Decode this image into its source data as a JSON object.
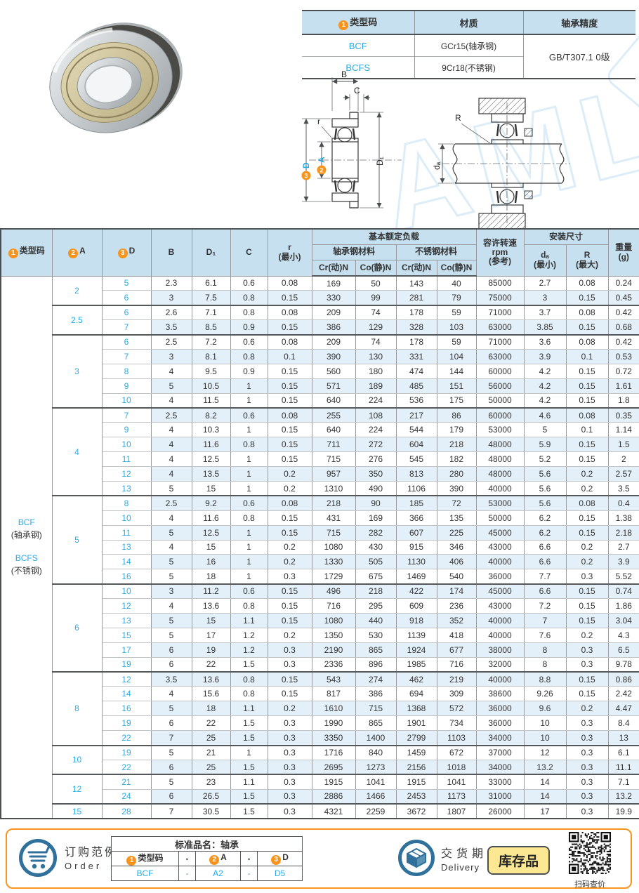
{
  "colors": {
    "accent_orange": "#f7941d",
    "link_blue": "#2aabe3",
    "header_blue_bg": "#c6e0f0",
    "stripe_blue": "#e3f0f9",
    "icon_blue": "#30719c",
    "badge_yellow": "#fce793"
  },
  "watermark_text": "AML",
  "top_table": {
    "badge1": "1",
    "headers": {
      "type_code": "类型码",
      "material": "材质",
      "precision": "轴承精度"
    },
    "rows": [
      {
        "code": "BCF",
        "material": "GCr15(轴承钢)"
      },
      {
        "code": "BCFS",
        "material": "9Cr18(不锈钢)"
      }
    ],
    "precision_value": "GB/T307.1 0级"
  },
  "diagram": {
    "b": "B",
    "c": "C",
    "r": "r",
    "a": "A",
    "d": "D",
    "d1": "D₁",
    "rr": "R",
    "da": "dₐ",
    "badge_a": "2",
    "badge_d": "3"
  },
  "main_table": {
    "header": {
      "badge1": "1",
      "type_code": "类型码",
      "badge2": "2",
      "a": "A",
      "badge3": "3",
      "d": "D",
      "b": "B",
      "d1": "D₁",
      "c": "C",
      "r": [
        "r",
        "(最小)"
      ],
      "load_group": "基本额定负载",
      "steel": "轴承钢材料",
      "stainless": "不锈钢材料",
      "cr_dyn": "Cr(动)N",
      "co_stat": "Co(静)N",
      "rpm": [
        "容许转速",
        "rpm",
        "(参考)"
      ],
      "mount_group": "安装尺寸",
      "da": [
        "dₐ",
        "(最小)"
      ],
      "r_max": [
        "R",
        "(最大)"
      ],
      "weight": [
        "重量",
        "(g)"
      ]
    },
    "type_code_cell": {
      "code1": "BCF",
      "mat1": "(轴承钢)",
      "code2": "BCFS",
      "mat2": "(不锈钢)"
    },
    "groups": [
      {
        "a": "2",
        "rows": [
          {
            "d": "5",
            "vals": [
              "2.3",
              "6.1",
              "0.6",
              "0.08",
              "169",
              "50",
              "143",
              "40",
              "85000",
              "2.7",
              "0.08",
              "0.24"
            ]
          },
          {
            "d": "6",
            "vals": [
              "3",
              "7.5",
              "0.8",
              "0.15",
              "330",
              "99",
              "281",
              "79",
              "75000",
              "3",
              "0.15",
              "0.45"
            ]
          }
        ]
      },
      {
        "a": "2.5",
        "rows": [
          {
            "d": "6",
            "vals": [
              "2.6",
              "7.1",
              "0.8",
              "0.08",
              "209",
              "74",
              "178",
              "59",
              "71000",
              "3.7",
              "0.08",
              "0.42"
            ]
          },
          {
            "d": "7",
            "vals": [
              "3.5",
              "8.5",
              "0.9",
              "0.15",
              "386",
              "129",
              "328",
              "103",
              "63000",
              "3.85",
              "0.15",
              "0.68"
            ]
          }
        ]
      },
      {
        "a": "3",
        "rows": [
          {
            "d": "6",
            "vals": [
              "2.5",
              "7.2",
              "0.6",
              "0.08",
              "209",
              "74",
              "178",
              "59",
              "71000",
              "3.6",
              "0.08",
              "0.42"
            ]
          },
          {
            "d": "7",
            "vals": [
              "3",
              "8.1",
              "0.8",
              "0.1",
              "390",
              "130",
              "331",
              "104",
              "63000",
              "3.9",
              "0.1",
              "0.53"
            ]
          },
          {
            "d": "8",
            "vals": [
              "4",
              "9.5",
              "0.9",
              "0.15",
              "560",
              "180",
              "474",
              "144",
              "60000",
              "4.2",
              "0.15",
              "0.72"
            ]
          },
          {
            "d": "9",
            "vals": [
              "5",
              "10.5",
              "1",
              "0.15",
              "571",
              "189",
              "485",
              "151",
              "56000",
              "4.2",
              "0.15",
              "1.61"
            ]
          },
          {
            "d": "10",
            "vals": [
              "4",
              "11.5",
              "1",
              "0.15",
              "640",
              "224",
              "536",
              "175",
              "50000",
              "4.2",
              "0.15",
              "1.8"
            ]
          }
        ]
      },
      {
        "a": "4",
        "rows": [
          {
            "d": "7",
            "vals": [
              "2.5",
              "8.2",
              "0.6",
              "0.08",
              "255",
              "108",
              "217",
              "86",
              "60000",
              "4.6",
              "0.08",
              "0.35"
            ]
          },
          {
            "d": "9",
            "vals": [
              "4",
              "10.3",
              "1",
              "0.15",
              "640",
              "224",
              "544",
              "179",
              "53000",
              "5",
              "0.1",
              "1.14"
            ]
          },
          {
            "d": "10",
            "vals": [
              "4",
              "11.6",
              "0.8",
              "0.15",
              "711",
              "272",
              "604",
              "218",
              "48000",
              "5.9",
              "0.15",
              "1.5"
            ]
          },
          {
            "d": "11",
            "vals": [
              "4",
              "12.5",
              "1",
              "0.15",
              "715",
              "276",
              "545",
              "182",
              "48000",
              "5.2",
              "0.15",
              "2"
            ]
          },
          {
            "d": "12",
            "vals": [
              "4",
              "13.5",
              "1",
              "0.2",
              "957",
              "350",
              "813",
              "280",
              "48000",
              "5.6",
              "0.2",
              "2.57"
            ]
          },
          {
            "d": "13",
            "vals": [
              "5",
              "15",
              "1",
              "0.2",
              "1310",
              "490",
              "1106",
              "390",
              "40000",
              "5.6",
              "0.2",
              "3.5"
            ]
          }
        ]
      },
      {
        "a": "5",
        "rows": [
          {
            "d": "8",
            "vals": [
              "2.5",
              "9.2",
              "0.6",
              "0.08",
              "218",
              "90",
              "185",
              "72",
              "53000",
              "5.6",
              "0.08",
              "0.4"
            ]
          },
          {
            "d": "10",
            "vals": [
              "4",
              "11.6",
              "0.8",
              "0.15",
              "431",
              "169",
              "366",
              "135",
              "50000",
              "6.2",
              "0.15",
              "1.38"
            ]
          },
          {
            "d": "11",
            "vals": [
              "5",
              "12.5",
              "1",
              "0.15",
              "715",
              "282",
              "607",
              "225",
              "45000",
              "6.2",
              "0.15",
              "2.18"
            ]
          },
          {
            "d": "13",
            "vals": [
              "4",
              "15",
              "1",
              "0.2",
              "1080",
              "430",
              "915",
              "346",
              "43000",
              "6.6",
              "0.2",
              "2.7"
            ]
          },
          {
            "d": "14",
            "vals": [
              "5",
              "16",
              "1",
              "0.2",
              "1330",
              "505",
              "1130",
              "406",
              "40000",
              "6.6",
              "0.2",
              "3.9"
            ]
          },
          {
            "d": "16",
            "vals": [
              "5",
              "18",
              "1",
              "0.3",
              "1729",
              "675",
              "1469",
              "540",
              "36000",
              "7.7",
              "0.3",
              "5.52"
            ]
          }
        ]
      },
      {
        "a": "6",
        "rows": [
          {
            "d": "10",
            "vals": [
              "3",
              "11.2",
              "0.6",
              "0.15",
              "496",
              "218",
              "422",
              "174",
              "45000",
              "6.6",
              "0.15",
              "0.74"
            ]
          },
          {
            "d": "12",
            "vals": [
              "4",
              "13.6",
              "0.8",
              "0.15",
              "716",
              "295",
              "609",
              "236",
              "43000",
              "7.2",
              "0.15",
              "1.86"
            ]
          },
          {
            "d": "13",
            "vals": [
              "5",
              "15",
              "1.1",
              "0.15",
              "1080",
              "440",
              "918",
              "352",
              "40000",
              "7",
              "0.15",
              "3.04"
            ]
          },
          {
            "d": "15",
            "vals": [
              "5",
              "17",
              "1.2",
              "0.2",
              "1350",
              "530",
              "1139",
              "418",
              "40000",
              "7.6",
              "0.2",
              "4.3"
            ]
          },
          {
            "d": "17",
            "vals": [
              "6",
              "19",
              "1.2",
              "0.3",
              "2190",
              "865",
              "1924",
              "677",
              "38000",
              "8",
              "0.3",
              "6.5"
            ]
          },
          {
            "d": "19",
            "vals": [
              "6",
              "22",
              "1.5",
              "0.3",
              "2336",
              "896",
              "1985",
              "716",
              "32000",
              "8",
              "0.3",
              "9.78"
            ]
          }
        ]
      },
      {
        "a": "8",
        "rows": [
          {
            "d": "12",
            "vals": [
              "3.5",
              "13.6",
              "0.8",
              "0.15",
              "543",
              "274",
              "462",
              "219",
              "40000",
              "8.8",
              "0.15",
              "0.86"
            ]
          },
          {
            "d": "14",
            "vals": [
              "4",
              "15.6",
              "0.8",
              "0.15",
              "817",
              "386",
              "694",
              "309",
              "38600",
              "9.26",
              "0.15",
              "2.42"
            ]
          },
          {
            "d": "16",
            "vals": [
              "5",
              "18",
              "1.1",
              "0.2",
              "1610",
              "715",
              "1368",
              "572",
              "36000",
              "9.6",
              "0.2",
              "4.47"
            ]
          },
          {
            "d": "19",
            "vals": [
              "6",
              "22",
              "1.5",
              "0.3",
              "1990",
              "865",
              "1901",
              "734",
              "36000",
              "10",
              "0.3",
              "8.4"
            ]
          },
          {
            "d": "22",
            "vals": [
              "7",
              "25",
              "1.5",
              "0.3",
              "3350",
              "1400",
              "2799",
              "1103",
              "34000",
              "10",
              "0.3",
              "13"
            ]
          }
        ]
      },
      {
        "a": "10",
        "rows": [
          {
            "d": "19",
            "vals": [
              "5",
              "21",
              "1",
              "0.3",
              "1716",
              "840",
              "1459",
              "672",
              "37000",
              "12",
              "0.3",
              "6.1"
            ]
          },
          {
            "d": "22",
            "vals": [
              "6",
              "25",
              "1.5",
              "0.3",
              "2695",
              "1273",
              "2156",
              "1018",
              "34000",
              "13.2",
              "0.3",
              "11.1"
            ]
          }
        ]
      },
      {
        "a": "12",
        "rows": [
          {
            "d": "21",
            "vals": [
              "5",
              "23",
              "1.1",
              "0.3",
              "1915",
              "1041",
              "1915",
              "1041",
              "33000",
              "14",
              "0.3",
              "7.1"
            ]
          },
          {
            "d": "24",
            "vals": [
              "6",
              "26.5",
              "1.5",
              "0.3",
              "2886",
              "1466",
              "2453",
              "1173",
              "31000",
              "14",
              "0.3",
              "13.2"
            ]
          }
        ]
      },
      {
        "a": "15",
        "rows": [
          {
            "d": "28",
            "vals": [
              "7",
              "30.5",
              "1.5",
              "0.3",
              "4321",
              "2259",
              "3672",
              "1807",
              "26000",
              "17",
              "0.3",
              "19.9"
            ]
          }
        ]
      }
    ]
  },
  "footer": {
    "order_cn": "订购范例",
    "order_en": "Order",
    "order_table": {
      "title": "标准品名：轴承",
      "badge1": "1",
      "badge2": "2",
      "badge3": "3",
      "h_type": "类型码",
      "h_dash1": "-",
      "h_a": "A",
      "h_dash2": "-",
      "h_d": "D",
      "v_type": "BCF",
      "v_dash1": "-",
      "v_a": "A2",
      "v_dash2": "-",
      "v_d": "D5"
    },
    "delivery_cn": "交货期",
    "delivery_en": "Delivery",
    "stock_badge": "库存品",
    "qr_caption": "扫码查价"
  }
}
